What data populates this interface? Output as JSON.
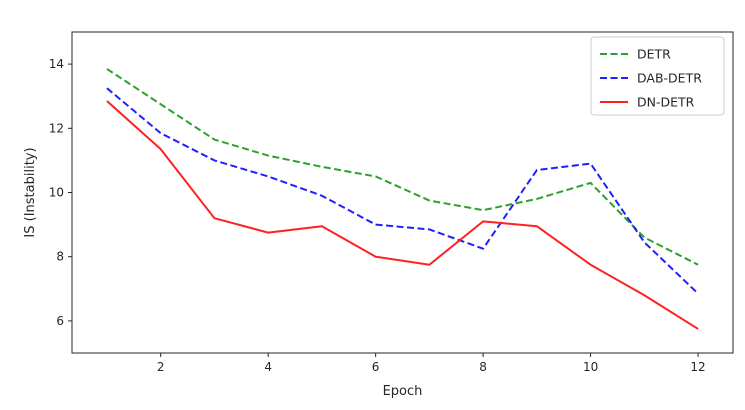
{
  "chart_data": {
    "type": "line",
    "title": "",
    "xlabel": "Epoch",
    "ylabel": "IS (Instability)",
    "xlim": [
      0.35,
      12.65
    ],
    "ylim": [
      5.0,
      15.0
    ],
    "xticks": [
      2,
      4,
      6,
      8,
      10,
      12
    ],
    "yticks": [
      6,
      8,
      10,
      12,
      14
    ],
    "grid": false,
    "legend_position": "top-right",
    "x": [
      1,
      2,
      3,
      4,
      5,
      6,
      7,
      8,
      9,
      10,
      11,
      12
    ],
    "series": [
      {
        "name": "DETR",
        "color": "#2ca02c",
        "style": "dashed",
        "values": [
          13.85,
          12.75,
          11.65,
          11.15,
          10.8,
          10.5,
          9.75,
          9.45,
          9.8,
          10.3,
          8.6,
          7.75
        ]
      },
      {
        "name": "DAB-DETR",
        "color": "#1f1fff",
        "style": "dashed",
        "values": [
          13.25,
          11.85,
          11.0,
          10.5,
          9.9,
          9.0,
          8.85,
          8.25,
          10.7,
          10.9,
          8.45,
          6.85
        ]
      },
      {
        "name": "DN-DETR",
        "color": "#ff2020",
        "style": "solid",
        "values": [
          12.85,
          11.35,
          9.2,
          8.75,
          8.95,
          8.0,
          7.75,
          9.1,
          8.95,
          7.75,
          6.8,
          5.75
        ]
      }
    ]
  }
}
